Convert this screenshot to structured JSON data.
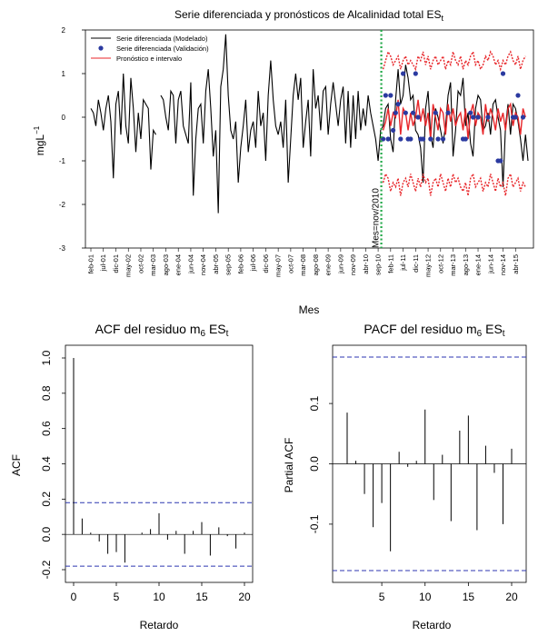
{
  "charts": {
    "top": {
      "title": "Serie diferenciada y pronósticos de Alcalinidad total ES",
      "title_sub": "t",
      "xlabel": "Mes",
      "ylabel": "mgL",
      "ylabel_sup": "−1",
      "vline_label": "Mes=nov/2010",
      "legend": [
        {
          "label": "Serie diferenciada (Modelado)",
          "color": "#000000",
          "kind": "line"
        },
        {
          "label": "Serie diferenciada (Validación)",
          "color": "#2b3aa0",
          "kind": "point"
        },
        {
          "label": "Pronóstico e intervalo",
          "color": "#e8262a",
          "kind": "line"
        }
      ]
    },
    "acf": {
      "title": "ACF del residuo m",
      "title_sub1": "6",
      "title_mid": " ES",
      "title_sub2": "t",
      "xlabel": "Retardo",
      "ylabel": "ACF"
    },
    "pacf": {
      "title": "PACF del residuo m",
      "title_sub1": "6",
      "title_mid": " ES",
      "title_sub2": "t",
      "xlabel": "Retardo",
      "ylabel": "Partial ACF"
    }
  },
  "chart_data": [
    {
      "type": "line",
      "title": "Serie diferenciada y pronósticos de Alcalinidad total ESt",
      "xlabel": "Mes",
      "ylabel": "mgL−1",
      "ylim": [
        -3,
        2
      ],
      "yticks": [
        -3,
        -2,
        -1,
        0,
        1,
        2
      ],
      "x_tick_labels": [
        "feb-01",
        "jul-01",
        "dic-01",
        "may-02",
        "oct-02",
        "mar-03",
        "ago-03",
        "ene-04",
        "jun-04",
        "nov-04",
        "abr-05",
        "sep-05",
        "feb-06",
        "jul-06",
        "dic-06",
        "may-07",
        "oct-07",
        "mar-08",
        "ago-08",
        "ene-09",
        "jun-09",
        "nov-09",
        "abr-10",
        "sep-10",
        "feb-11",
        "jul-11",
        "dic-11",
        "may-12",
        "oct-12",
        "mar-13",
        "ago-13",
        "ene-14",
        "jun-14",
        "nov-14",
        "abr-15"
      ],
      "x_start_month": "feb-01",
      "vline_month": "nov-10",
      "series": [
        {
          "name": "Serie diferenciada (Modelado)",
          "color": "#000000",
          "values": [
            0.2,
            0.1,
            -0.2,
            0.4,
            0.1,
            -0.3,
            0.2,
            0.5,
            -0.1,
            -1.4,
            0.3,
            0.6,
            -0.4,
            1.0,
            -0.2,
            -0.6,
            0.9,
            0.2,
            -0.8,
            0.1,
            -0.5,
            0.4,
            0.3,
            0.2,
            -1.2,
            -0.3,
            -0.4,
            null,
            0.5,
            0.4,
            0.0,
            -0.3,
            0.6,
            0.5,
            -0.6,
            0.4,
            0.6,
            -0.2,
            -0.4,
            -0.6,
            0.8,
            -1.8,
            -0.5,
            0.2,
            0.3,
            -0.6,
            0.6,
            1.1,
            0.2,
            -0.9,
            -0.3,
            -2.2,
            0.7,
            1.1,
            1.9,
            0.5,
            -0.3,
            -0.5,
            -0.1,
            -1.5,
            -0.7,
            -0.2,
            0.4,
            -0.8,
            -0.3,
            -0.1,
            -0.7,
            0.6,
            -0.2,
            0.1,
            -1.0,
            0.5,
            1.3,
            0.4,
            -0.2,
            -0.4,
            -0.1,
            -0.7,
            0.4,
            -1.5,
            -0.5,
            0.5,
            1.0,
            0.4,
            0.9,
            -0.7,
            -0.1,
            0.4,
            -0.9,
            1.1,
            0.2,
            0.5,
            -0.3,
            0.6,
            0.7,
            -0.4,
            0.3,
            0.8,
            0.3,
            -0.2,
            0.4,
            0.7,
            -0.6,
            0.6,
            -0.7,
            0.5,
            -0.5,
            0.6,
            -0.3,
            0.2,
            -0.2,
            0.5,
            0.1,
            -0.2,
            -0.5,
            -1.0,
            -0.3,
            -0.2,
            0.2,
            0.3,
            -0.5,
            -0.8,
            0.4,
            1.1,
            0.3,
            0.5,
            1.2,
            0.9,
            0.4,
            0.5,
            -0.3,
            -0.4,
            -0.7,
            -1.5,
            0.2,
            0.6,
            -0.4,
            -0.7,
            0.2,
            0.0,
            -0.3,
            -0.6,
            -0.2,
            0.5,
            0.8,
            -0.9,
            -0.3,
            0.6,
            0.5,
            0.9,
            -0.2,
            0.1,
            -0.6,
            -0.9,
            0.2,
            0.5,
            0.4,
            -0.3,
            -0.2,
            0.1,
            -0.4,
            0.3,
            0.4,
            0.0,
            -0.3,
            -1.6,
            -0.2,
            0.3,
            -0.4,
            0.3,
            0.2,
            -0.1,
            -0.5,
            -1.0,
            -0.4,
            -1.0
          ]
        },
        {
          "name": "Serie diferenciada (Validación)",
          "color": "#2b3aa0",
          "kind": "points",
          "x_index": [
            117,
            118,
            119,
            120,
            121,
            122,
            123,
            124,
            125,
            126,
            127,
            128,
            129,
            130,
            131,
            132,
            133,
            136,
            138,
            139,
            141,
            143,
            149,
            150,
            152,
            153,
            155,
            159,
            163,
            164,
            165,
            169,
            170,
            171,
            173
          ],
          "values": [
            -0.5,
            0.5,
            -0.5,
            0.5,
            -0.3,
            0.1,
            0.3,
            -0.5,
            1.0,
            0.1,
            -0.5,
            -0.5,
            0.1,
            1.0,
            0.0,
            -0.5,
            -0.5,
            -0.5,
            0.1,
            -0.5,
            -0.5,
            0.1,
            -0.5,
            -0.5,
            0.1,
            0.0,
            0.0,
            0.0,
            -1.0,
            -1.0,
            1.0,
            0.0,
            0.0,
            0.5,
            0.0
          ]
        },
        {
          "name": "Pronóstico e intervalo",
          "color": "#e8262a",
          "start_index": 117,
          "values": [
            -0.3,
            -0.1,
            0.2,
            -0.2,
            0.1,
            0.0,
            0.4,
            -0.4,
            0.2,
            0.1,
            -0.3,
            0.1,
            -0.2,
            0.0,
            0.4,
            -0.1,
            0.2,
            -0.2,
            0.1,
            -0.5,
            0.3,
            0.0,
            -0.3,
            0.2,
            0.1,
            -0.4,
            0.3,
            -0.1,
            0.2,
            -0.2,
            0.0,
            0.1,
            -0.3,
            0.2,
            -0.5,
            0.1,
            0.3,
            -0.2,
            0.1,
            0.0,
            -0.4,
            0.3,
            -0.1,
            0.2,
            0.0,
            -0.3,
            0.2,
            -0.1,
            0.1,
            -0.3,
            0.2,
            0.3,
            -0.2,
            0.1,
            0.0,
            -0.4,
            0.2,
            0.0
          ],
          "upper": [
            1.1,
            1.3,
            1.5,
            1.4,
            1.2,
            1.3,
            1.4,
            1.1,
            1.3,
            1.4,
            1.2,
            1.3,
            1.2,
            1.1,
            1.4,
            1.3,
            1.5,
            1.2,
            1.4,
            1.1,
            1.3,
            1.4,
            1.2,
            1.3,
            1.4,
            1.1,
            1.3,
            1.2,
            1.5,
            1.3,
            1.2,
            1.4,
            1.1,
            1.3,
            1.2,
            1.4,
            1.5,
            1.2,
            1.3,
            1.1,
            1.2,
            1.4,
            1.3,
            1.5,
            1.4,
            1.2,
            1.3,
            1.1,
            1.3,
            1.2,
            1.4,
            1.5,
            1.3,
            1.2,
            1.4,
            1.1,
            1.3,
            1.4
          ],
          "lower": [
            -1.5,
            -1.3,
            -1.4,
            -1.7,
            -1.5,
            -1.6,
            -1.4,
            -1.8,
            -1.5,
            -1.4,
            -1.6,
            -1.3,
            -1.5,
            -1.7,
            -1.4,
            -1.6,
            -1.3,
            -1.5,
            -1.4,
            -1.8,
            -1.5,
            -1.4,
            -1.6,
            -1.3,
            -1.5,
            -1.7,
            -1.4,
            -1.6,
            -1.3,
            -1.5,
            -1.4,
            -1.6,
            -1.7,
            -1.5,
            -1.8,
            -1.4,
            -1.3,
            -1.6,
            -1.5,
            -1.4,
            -1.7,
            -1.5,
            -1.6,
            -1.3,
            -1.5,
            -1.7,
            -1.4,
            -1.6,
            -1.5,
            -1.8,
            -1.4,
            -1.3,
            -1.6,
            -1.5,
            -1.4,
            -1.7,
            -1.5,
            -1.6
          ]
        }
      ]
    },
    {
      "type": "bar",
      "title": "ACF del residuo m6 ESt",
      "xlabel": "Retardo",
      "ylabel": "ACF",
      "xlim": [
        0,
        20
      ],
      "ylim": [
        -0.2,
        1.0
      ],
      "xticks": [
        0,
        5,
        10,
        15,
        20
      ],
      "yticks": [
        -0.2,
        0.0,
        0.2,
        0.4,
        0.6,
        0.8,
        1.0
      ],
      "lags": [
        0,
        1,
        2,
        3,
        4,
        5,
        6,
        7,
        8,
        9,
        10,
        11,
        12,
        13,
        14,
        15,
        16,
        17,
        18,
        19,
        20
      ],
      "values": [
        1.0,
        0.09,
        0.01,
        -0.04,
        -0.11,
        -0.1,
        -0.16,
        0.0,
        0.01,
        0.03,
        0.12,
        -0.03,
        0.02,
        -0.11,
        0.02,
        0.07,
        -0.12,
        0.04,
        -0.01,
        -0.08,
        0.01
      ],
      "conf_band": [
        -0.18,
        0.18
      ]
    },
    {
      "type": "bar",
      "title": "PACF del residuo m6 ESt",
      "xlabel": "Retardo",
      "ylabel": "Partial ACF",
      "xlim": [
        1,
        20
      ],
      "ylim": [
        -0.18,
        0.18
      ],
      "xticks": [
        5,
        10,
        15,
        20
      ],
      "yticks": [
        -0.1,
        0.0,
        0.1
      ],
      "lags": [
        1,
        2,
        3,
        4,
        5,
        6,
        7,
        8,
        9,
        10,
        11,
        12,
        13,
        14,
        15,
        16,
        17,
        18,
        19,
        20
      ],
      "values": [
        0.085,
        0.005,
        -0.05,
        -0.105,
        -0.065,
        -0.145,
        0.02,
        -0.005,
        0.005,
        0.09,
        -0.06,
        0.015,
        -0.095,
        0.055,
        0.08,
        -0.11,
        0.03,
        -0.015,
        -0.1,
        0.025
      ],
      "conf_band": [
        -0.177,
        0.177
      ]
    }
  ]
}
